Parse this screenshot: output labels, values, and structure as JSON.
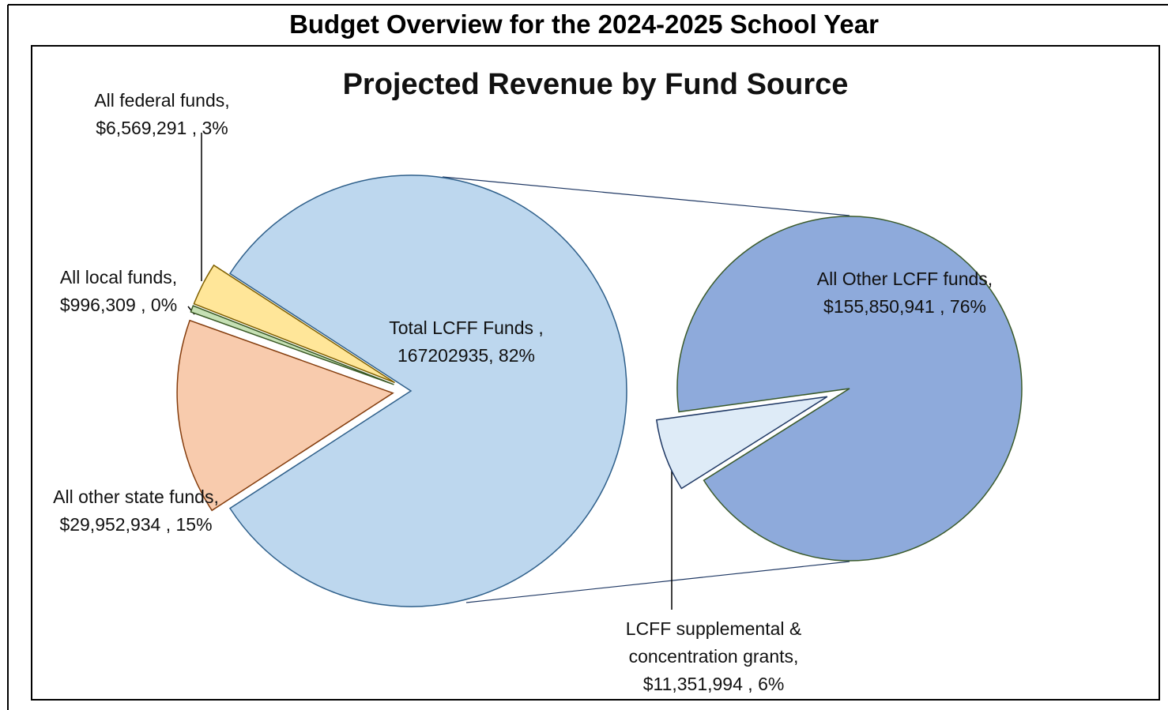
{
  "header": "Budget Overview for the 2024-2025 School Year",
  "chart_data": {
    "type": "pie_of_pie",
    "title": "Projected Revenue by Fund Source",
    "categories": [
      "All federal funds,",
      "All local funds,",
      "All other state funds,",
      "Total LCFF Funds ,"
    ],
    "values": [
      6569291,
      996309,
      29952934,
      167202935
    ],
    "value_labels": [
      "$6,569,291 ,",
      "$996,309 ,",
      "$29,952,934 ,",
      "167202935,"
    ],
    "percents": [
      3,
      0,
      15,
      82
    ],
    "percent_labels": [
      "3%",
      "0%",
      "15%",
      "82%"
    ],
    "colors": [
      "#ffe699",
      "#c5e0b4",
      "#f8cbad",
      "#bdd7ee"
    ],
    "secondary": {
      "categories": [
        "All Other LCFF funds,",
        "LCFF supplemental & concentration grants,"
      ],
      "values": [
        155850941,
        11351994
      ],
      "value_labels": [
        "$155,850,941 ,",
        "$11,351,994 ,"
      ],
      "percents": [
        76,
        6
      ],
      "percent_labels": [
        "76%",
        "6%"
      ],
      "colors": [
        "#8eaadb",
        "#deebf7"
      ]
    }
  }
}
